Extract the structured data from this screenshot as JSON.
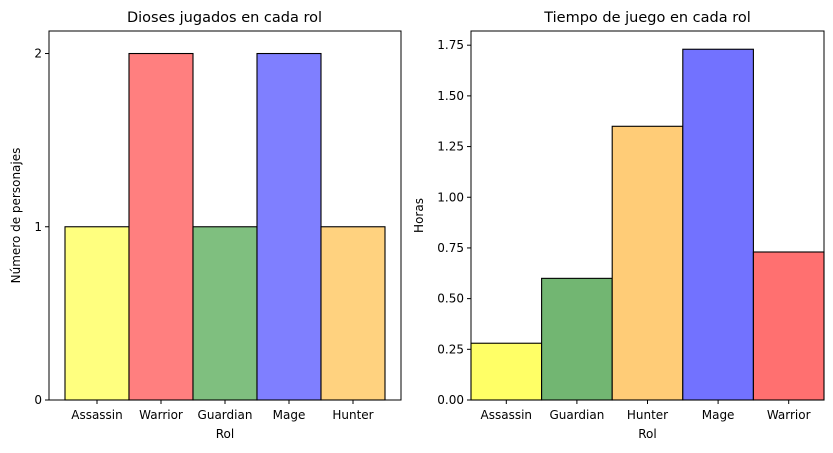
{
  "chart_data": [
    {
      "type": "bar",
      "title": "Dioses jugados en cada rol",
      "xlabel": "Rol",
      "ylabel": "Número de personajes",
      "categories": [
        "Assassin",
        "Warrior",
        "Guardian",
        "Mage",
        "Hunter"
      ],
      "values": [
        1,
        2,
        1,
        2,
        1
      ],
      "colors": [
        "#ffff7f",
        "#ff7f7f",
        "#7fbf7f",
        "#7f7fff",
        "#ffd27f"
      ],
      "ylim": [
        0,
        2.13
      ],
      "yticks": [
        0,
        1,
        2
      ],
      "ytick_labels": [
        "0",
        "1",
        "2"
      ],
      "grid": false
    },
    {
      "type": "bar",
      "title": "Tiempo de juego en cada rol",
      "xlabel": "Rol",
      "ylabel": "Horas",
      "categories": [
        "Assassin",
        "Guardian",
        "Hunter",
        "Mage",
        "Warrior"
      ],
      "values": [
        0.28,
        0.6,
        1.35,
        1.73,
        0.73
      ],
      "colors": [
        "#ffff66",
        "#72b672",
        "#ffcc77",
        "#7272ff",
        "#ff7070"
      ],
      "ylim": [
        0,
        1.82
      ],
      "yticks": [
        0,
        0.25,
        0.5,
        0.75,
        1.0,
        1.25,
        1.5,
        1.75
      ],
      "ytick_labels": [
        "0.00",
        "0.25",
        "0.50",
        "0.75",
        "1.00",
        "1.25",
        "1.50",
        "1.75"
      ],
      "grid": false
    }
  ]
}
